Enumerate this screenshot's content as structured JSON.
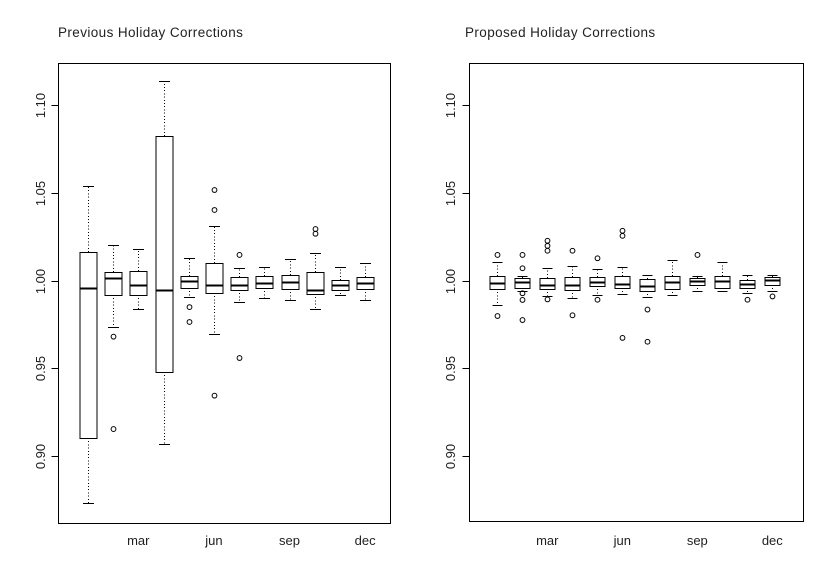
{
  "window": {
    "background": "#ffffff"
  },
  "colors": {
    "background": "#ffffff",
    "line": "#000000",
    "text": "#1e1e1e"
  },
  "chart_data": [
    {
      "type": "boxplot",
      "id": "previous",
      "title": "Previous Holiday Corrections",
      "categories": [
        "jan",
        "feb",
        "mar",
        "apr",
        "may",
        "jun",
        "jul",
        "aug",
        "sep",
        "oct",
        "nov",
        "dec"
      ],
      "x_ticks": [
        {
          "month": 3,
          "label": "mar"
        },
        {
          "month": 6,
          "label": "jun"
        },
        {
          "month": 9,
          "label": "sep"
        },
        {
          "month": 12,
          "label": "dec"
        }
      ],
      "y_ticks": [
        {
          "value": 0.9,
          "label": "0.90"
        },
        {
          "value": 0.95,
          "label": "0.95"
        },
        {
          "value": 1.0,
          "label": "1.00"
        },
        {
          "value": 1.05,
          "label": "1.05"
        },
        {
          "value": 1.1,
          "label": "1.10"
        }
      ],
      "ylim": [
        0.861,
        1.124
      ],
      "grid": false,
      "legend": "none",
      "boxes": [
        {
          "month": 1,
          "whisker_low": 0.873,
          "q1": 0.91,
          "median": 0.996,
          "q3": 1.016,
          "whisker_high": 1.054,
          "outliers": []
        },
        {
          "month": 2,
          "whisker_low": 0.9735,
          "q1": 0.9915,
          "median": 1.0013,
          "q3": 1.0051,
          "whisker_high": 1.0205,
          "outliers": [
            0.9679,
            0.9151
          ]
        },
        {
          "month": 3,
          "whisker_low": 0.984,
          "q1": 0.9915,
          "median": 0.9976,
          "q3": 1.0057,
          "whisker_high": 1.018,
          "outliers": []
        },
        {
          "month": 4,
          "whisker_low": 0.9063,
          "q1": 0.9479,
          "median": 0.9943,
          "q3": 1.0828,
          "whisker_high": 1.1142,
          "outliers": []
        },
        {
          "month": 5,
          "whisker_low": 0.9905,
          "q1": 0.9956,
          "median": 1.0,
          "q3": 1.0024,
          "whisker_high": 1.0127,
          "outliers": [
            0.9848,
            0.9763
          ]
        },
        {
          "month": 6,
          "whisker_low": 0.9697,
          "q1": 0.9928,
          "median": 0.9972,
          "q3": 1.0098,
          "whisker_high": 1.0313,
          "outliers": [
            1.0517,
            1.0403,
            0.9342
          ]
        },
        {
          "month": 7,
          "whisker_low": 0.9877,
          "q1": 0.9943,
          "median": 0.9972,
          "q3": 1.0019,
          "whisker_high": 1.007,
          "outliers": [
            1.0146,
            0.9557
          ]
        },
        {
          "month": 8,
          "whisker_low": 0.9899,
          "q1": 0.9959,
          "median": 0.9985,
          "q3": 1.0023,
          "whisker_high": 1.0076,
          "outliers": []
        },
        {
          "month": 9,
          "whisker_low": 0.989,
          "q1": 0.9953,
          "median": 0.999,
          "q3": 1.0032,
          "whisker_high": 1.0123,
          "outliers": []
        },
        {
          "month": 10,
          "whisker_low": 0.9835,
          "q1": 0.9924,
          "median": 0.9946,
          "q3": 1.0051,
          "whisker_high": 1.0155,
          "outliers": [
            1.0294,
            1.0267
          ]
        },
        {
          "month": 11,
          "whisker_low": 0.9915,
          "q1": 0.9943,
          "median": 0.9972,
          "q3": 1.0004,
          "whisker_high": 1.0076,
          "outliers": []
        },
        {
          "month": 12,
          "whisker_low": 0.989,
          "q1": 0.9953,
          "median": 0.9985,
          "q3": 1.0019,
          "whisker_high": 1.0098,
          "outliers": []
        }
      ]
    },
    {
      "type": "boxplot",
      "id": "proposed",
      "title": "Proposed Holiday Corrections",
      "categories": [
        "jan",
        "feb",
        "mar",
        "apr",
        "may",
        "jun",
        "jul",
        "aug",
        "sep",
        "oct",
        "nov",
        "dec"
      ],
      "x_ticks": [
        {
          "month": 3,
          "label": "mar"
        },
        {
          "month": 6,
          "label": "jun"
        },
        {
          "month": 9,
          "label": "sep"
        },
        {
          "month": 12,
          "label": "dec"
        }
      ],
      "y_ticks": [
        {
          "value": 0.9,
          "label": "0.90"
        },
        {
          "value": 0.95,
          "label": "0.95"
        },
        {
          "value": 1.0,
          "label": "1.00"
        },
        {
          "value": 1.05,
          "label": "1.05"
        },
        {
          "value": 1.1,
          "label": "1.10"
        }
      ],
      "ylim": [
        0.861,
        1.124
      ],
      "grid": false,
      "legend": "none",
      "boxes": [
        {
          "month": 1,
          "whisker_low": 0.9862,
          "q1": 0.9953,
          "median": 0.9987,
          "q3": 1.0028,
          "whisker_high": 1.0108,
          "outliers": [
            1.0146,
            0.9797
          ]
        },
        {
          "month": 2,
          "whisker_low": 0.9942,
          "q1": 0.9959,
          "median": 0.9993,
          "q3": 1.0013,
          "whisker_high": 1.0027,
          "outliers": [
            1.0146,
            1.007,
            0.9927,
            0.9889,
            0.9774
          ]
        },
        {
          "month": 3,
          "whisker_low": 0.9909,
          "q1": 0.9953,
          "median": 0.9976,
          "q3": 1.0013,
          "whisker_high": 1.007,
          "outliers": [
            1.0227,
            1.0198,
            1.017,
            0.9892
          ]
        },
        {
          "month": 4,
          "whisker_low": 0.9899,
          "q1": 0.9947,
          "median": 0.9972,
          "q3": 1.0019,
          "whisker_high": 1.0081,
          "outliers": [
            1.017,
            0.9801
          ]
        },
        {
          "month": 5,
          "whisker_low": 0.9919,
          "q1": 0.9967,
          "median": 0.999,
          "q3": 1.0019,
          "whisker_high": 1.0066,
          "outliers": [
            1.0127,
            0.989
          ]
        },
        {
          "month": 6,
          "whisker_low": 0.9924,
          "q1": 0.9956,
          "median": 0.9981,
          "q3": 1.0024,
          "whisker_high": 1.0076,
          "outliers": [
            1.0284,
            1.0255,
            0.9672
          ]
        },
        {
          "month": 7,
          "whisker_low": 0.9905,
          "q1": 0.9938,
          "median": 0.9966,
          "q3": 1.0006,
          "whisker_high": 1.0032,
          "outliers": [
            0.9834,
            0.965
          ]
        },
        {
          "month": 8,
          "whisker_low": 0.9915,
          "q1": 0.9949,
          "median": 0.999,
          "q3": 1.0023,
          "whisker_high": 1.0118,
          "outliers": []
        },
        {
          "month": 9,
          "whisker_low": 0.9938,
          "q1": 0.9977,
          "median": 1.0,
          "q3": 1.0013,
          "whisker_high": 1.0024,
          "outliers": [
            1.0146
          ]
        },
        {
          "month": 10,
          "whisker_low": 0.9938,
          "q1": 0.9956,
          "median": 0.9996,
          "q3": 1.0023,
          "whisker_high": 1.0104,
          "outliers": []
        },
        {
          "month": 11,
          "whisker_low": 0.993,
          "q1": 0.9956,
          "median": 0.9981,
          "q3": 1.0004,
          "whisker_high": 1.0032,
          "outliers": [
            0.989
          ]
        },
        {
          "month": 12,
          "whisker_low": 0.9938,
          "q1": 0.9972,
          "median": 1.0004,
          "q3": 1.0019,
          "whisker_high": 1.0032,
          "outliers": [
            0.9909
          ]
        }
      ]
    }
  ]
}
